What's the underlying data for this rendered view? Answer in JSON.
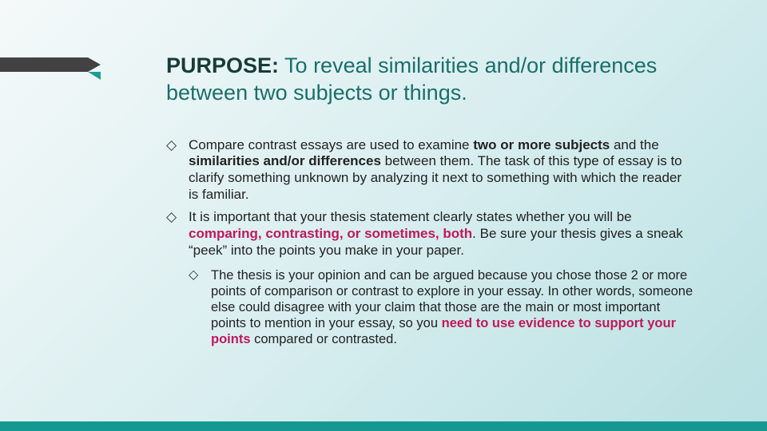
{
  "colors": {
    "background_gradient_start": "#f5f9f9",
    "background_gradient_mid": "#d9eef0",
    "background_gradient_end": "#b8e0e2",
    "title_color": "#1a6f6a",
    "purpose_label_color": "#173c38",
    "body_text_color": "#222222",
    "accent_magenta": "#c2185b",
    "corner_dark": "#424242",
    "corner_teal": "#1b9e97",
    "bottom_bar": "#159892"
  },
  "typography": {
    "title_fontsize_pt": 20,
    "body_fontsize_pt": 13,
    "sub_fontsize_pt": 12,
    "font_family": "Arial"
  },
  "title": {
    "label": "PURPOSE:",
    "text": "  To reveal similarities and/or differences between two subjects or things."
  },
  "bullets": [
    {
      "runs": [
        {
          "t": "Compare contrast essays are used to examine "
        },
        {
          "t": "two or more subjects",
          "style": "bold"
        },
        {
          "t": " and the "
        },
        {
          "t": "similarities and/or differences",
          "style": "bold"
        },
        {
          "t": " between them.  The task of this type of essay is to clarify something unknown by analyzing it next to something with which the reader is familiar."
        }
      ]
    },
    {
      "runs": [
        {
          "t": "It is important that your thesis statement clearly states whether you will be "
        },
        {
          "t": "comparing, contrasting, or sometimes, both",
          "style": "magenta"
        },
        {
          "t": ".  Be sure your thesis gives a sneak “peek” into the points you make in your paper."
        }
      ]
    }
  ],
  "sub_bullets": [
    {
      "runs": [
        {
          "t": "The thesis is your opinion and can be argued because you chose those 2 or more points of comparison or contrast to explore in your essay.  In other words, someone else could disagree with your claim that those are the main or most important points to mention in your essay, so you "
        },
        {
          "t": "need to use evidence to support your points",
          "style": "magenta"
        },
        {
          "t": " compared or contrasted."
        }
      ]
    }
  ]
}
